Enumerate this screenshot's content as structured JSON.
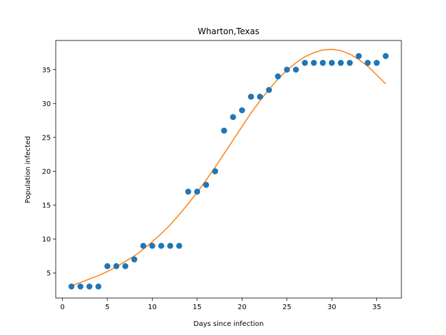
{
  "chart_data": {
    "type": "scatter",
    "title": "Wharton,Texas",
    "xlabel": "Days since infection",
    "ylabel": "Population infected",
    "xlim": [
      -0.75,
      37.75
    ],
    "ylim": [
      1.3,
      39.3
    ],
    "xticks": [
      0,
      5,
      10,
      15,
      20,
      25,
      30,
      35
    ],
    "yticks": [
      5,
      10,
      15,
      20,
      25,
      30,
      35
    ],
    "grid": false,
    "colors": {
      "observed": "#1f77b4",
      "fit": "#ff7f0e"
    },
    "series": [
      {
        "kind": "points",
        "x": [
          1,
          2,
          3,
          4,
          5,
          6,
          7,
          8,
          9,
          10,
          11,
          12,
          13,
          14,
          15,
          16,
          17,
          18,
          19,
          20,
          21,
          22,
          23,
          24,
          25,
          26,
          27,
          28,
          29,
          30,
          31,
          32,
          33,
          34,
          35,
          36
        ],
        "y": [
          3,
          3,
          3,
          3,
          6,
          6,
          6,
          7,
          9,
          9,
          9,
          9,
          9,
          17,
          17,
          18,
          20,
          26,
          28,
          29,
          31,
          31,
          32,
          34,
          35,
          35,
          36,
          36,
          36,
          36,
          36,
          36,
          37,
          36,
          36,
          37
        ]
      },
      {
        "kind": "line",
        "x": [
          1,
          2,
          3,
          4,
          5,
          6,
          7,
          8,
          9,
          10,
          11,
          12,
          13,
          14,
          15,
          16,
          17,
          18,
          19,
          20,
          21,
          22,
          23,
          24,
          25,
          26,
          27,
          28,
          29,
          30,
          31,
          32,
          33,
          34,
          35,
          36
        ],
        "y": [
          3.1,
          3.6,
          4.1,
          4.6,
          5.2,
          5.9,
          6.7,
          7.5,
          8.5,
          9.6,
          10.8,
          12.1,
          13.6,
          15.2,
          16.9,
          18.7,
          20.6,
          22.6,
          24.6,
          26.6,
          28.6,
          30.4,
          32.1,
          33.6,
          34.9,
          36.0,
          36.9,
          37.5,
          37.9,
          38.0,
          37.8,
          37.3,
          36.5,
          35.5,
          34.2,
          32.9
        ]
      }
    ]
  }
}
